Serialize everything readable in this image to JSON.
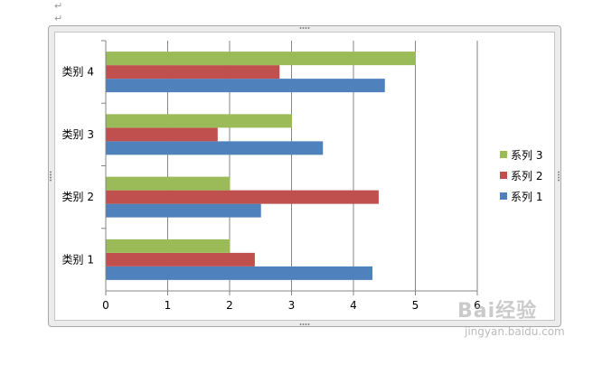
{
  "chart_data": {
    "type": "bar",
    "orientation": "horizontal",
    "categories": [
      "类别 1",
      "类别 2",
      "类别 3",
      "类别 4"
    ],
    "series": [
      {
        "name": "系列 1",
        "color": "#4f81bd",
        "values": [
          4.3,
          2.5,
          3.5,
          4.5
        ]
      },
      {
        "name": "系列 2",
        "color": "#c0504d",
        "values": [
          2.4,
          4.4,
          1.8,
          2.8
        ]
      },
      {
        "name": "系列 3",
        "color": "#9bbb59",
        "values": [
          2,
          2,
          3,
          5
        ]
      }
    ],
    "xlim": [
      0,
      6
    ],
    "xticks": [
      "0",
      "1",
      "2",
      "3",
      "4",
      "5",
      "6"
    ],
    "grid": "vertical",
    "legend": "right"
  },
  "watermark": {
    "logo": "Bai经验",
    "sub": "jingyan.baidu.com"
  }
}
